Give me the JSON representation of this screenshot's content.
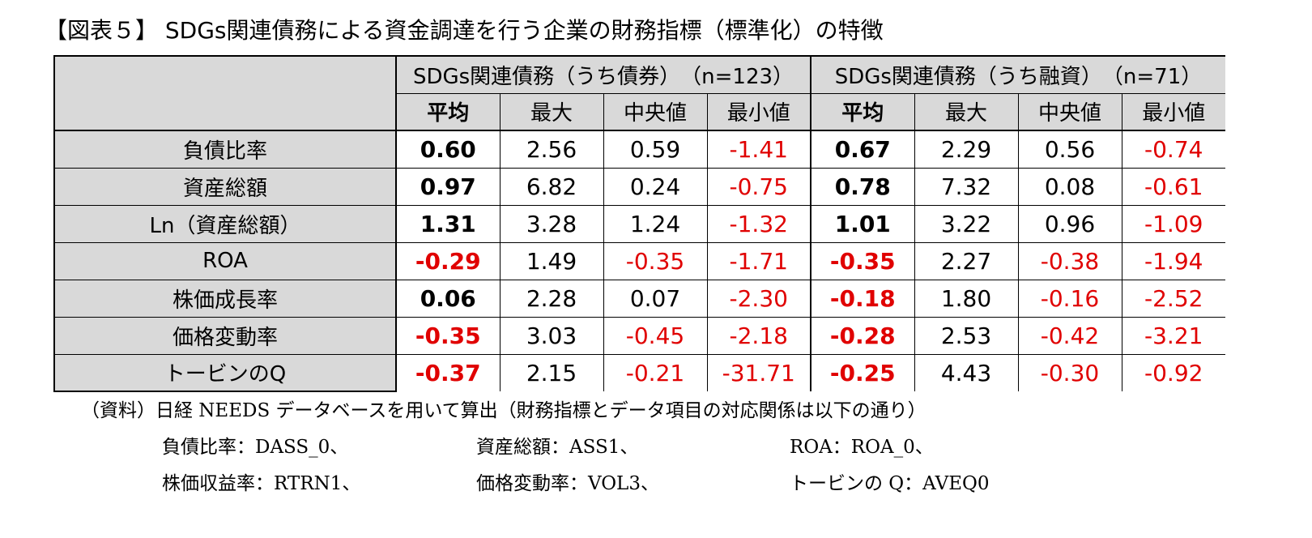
{
  "title": "【図表５】 SDGs関連債務による資金調達を行う企業の財務指標（標準化）の特徴",
  "table": {
    "group_headers": [
      "SDGs関連債務（うち債券）　（n=123）",
      "SDGs関連債務（うち融資）　（n=71）"
    ],
    "sub_headers": [
      "平均",
      "最大",
      "中央値",
      "最小値",
      "平均",
      "最大",
      "中央値",
      "最小値"
    ],
    "rows": [
      {
        "label": "負債比率",
        "values": [
          "0.60",
          "2.56",
          "0.59",
          "-1.41",
          "0.67",
          "2.29",
          "0.56",
          "-0.74"
        ]
      },
      {
        "label": "資産総額",
        "values": [
          "0.97",
          "6.82",
          "0.24",
          "-0.75",
          "0.78",
          "7.32",
          "0.08",
          "-0.61"
        ]
      },
      {
        "label": "Ln（資産総額）",
        "values": [
          "1.31",
          "3.28",
          "1.24",
          "-1.32",
          "1.01",
          "3.22",
          "0.96",
          "-1.09"
        ]
      },
      {
        "label": "ROA",
        "values": [
          "-0.29",
          "1.49",
          "-0.35",
          "-1.71",
          "-0.35",
          "2.27",
          "-0.38",
          "-1.94"
        ]
      },
      {
        "label": "株価成長率",
        "values": [
          "0.06",
          "2.28",
          "0.07",
          "-2.30",
          "-0.18",
          "1.80",
          "-0.16",
          "-2.52"
        ]
      },
      {
        "label": "価格変動率",
        "values": [
          "-0.35",
          "3.03",
          "-0.45",
          "-2.18",
          "-0.28",
          "2.53",
          "-0.42",
          "-3.21"
        ]
      },
      {
        "label": "トービンのQ",
        "values": [
          "-0.37",
          "2.15",
          "-0.21",
          "-31.71",
          "-0.25",
          "4.43",
          "-0.30",
          "-0.92"
        ]
      }
    ]
  },
  "colors": {
    "negative": "#e00000",
    "header_bg": "#d9d9d9"
  },
  "notes": {
    "source": "（資料）日経 NEEDS データベースを用いて算出（財務指標とデータ項目の対応関係は以下の通り）",
    "mappings": [
      "負債比率：DASS_0、",
      "資産総額：ASS1、",
      "ROA：ROA_0、",
      "株価収益率：RTRN1、",
      "価格変動率：VOL3、",
      "トービンの Q：AVEQ0"
    ]
  }
}
